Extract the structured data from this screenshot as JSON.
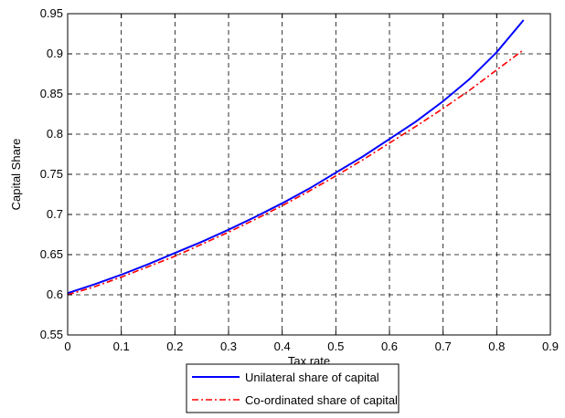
{
  "chart_data": {
    "type": "line",
    "title": "",
    "xlabel": "Tax rate",
    "ylabel": "Capital Share",
    "xlim": [
      0,
      0.9
    ],
    "ylim": [
      0.55,
      0.95
    ],
    "xticks": [
      "0",
      "0.1",
      "0.2",
      "0.3",
      "0.4",
      "0.5",
      "0.6",
      "0.7",
      "0.8",
      "0.9"
    ],
    "yticks": [
      "0.55",
      "0.6",
      "0.65",
      "0.7",
      "0.75",
      "0.8",
      "0.85",
      "0.9",
      "0.95"
    ],
    "grid": true,
    "legend_position": "bottom-outside",
    "series": [
      {
        "name": "Unilateral share of capital",
        "color": "#0000ff",
        "style": "solid",
        "x": [
          0,
          0.05,
          0.1,
          0.15,
          0.2,
          0.25,
          0.3,
          0.35,
          0.4,
          0.45,
          0.5,
          0.55,
          0.6,
          0.65,
          0.7,
          0.75,
          0.8,
          0.85
        ],
        "y": [
          0.602,
          0.613,
          0.625,
          0.638,
          0.652,
          0.666,
          0.681,
          0.697,
          0.714,
          0.732,
          0.752,
          0.772,
          0.794,
          0.816,
          0.841,
          0.869,
          0.902,
          0.942
        ]
      },
      {
        "name": "Co-ordinated share of capital",
        "color": "#ff0000",
        "style": "dash-dot",
        "x": [
          0,
          0.05,
          0.1,
          0.15,
          0.2,
          0.25,
          0.3,
          0.35,
          0.4,
          0.45,
          0.5,
          0.55,
          0.6,
          0.65,
          0.7,
          0.75,
          0.8,
          0.85
        ],
        "y": [
          0.6,
          0.61,
          0.622,
          0.635,
          0.648,
          0.663,
          0.678,
          0.694,
          0.711,
          0.729,
          0.748,
          0.768,
          0.789,
          0.81,
          0.832,
          0.855,
          0.88,
          0.905
        ]
      }
    ]
  }
}
